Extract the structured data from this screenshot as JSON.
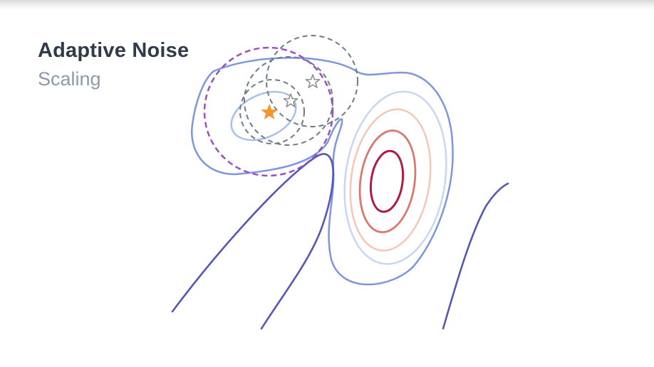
{
  "slide": {
    "title": "Adaptive Noise",
    "subtitle": "Scaling"
  },
  "colors": {
    "title": "#2f3a4a",
    "subtitle": "#8e9aab",
    "contour_outer": "#7f96dc",
    "contour_inner_left": "#aac0ea",
    "ridge_lines": "#5458b4",
    "contour_ring_1": "#c8d6f2",
    "contour_ring_2": "#f4c7b7",
    "contour_ring_3": "#d9786c",
    "contour_ring_4": "#b21a46",
    "purple_dashed_circle": "#9b4fc4",
    "gray_dashed_circles": "#6e7a88",
    "current_point_star": "#f4962b",
    "candidate_star_outline": "#8b8b8b"
  },
  "icons": {
    "current_point": "filled-star-icon",
    "candidate_points": "outlined-star-icon"
  }
}
